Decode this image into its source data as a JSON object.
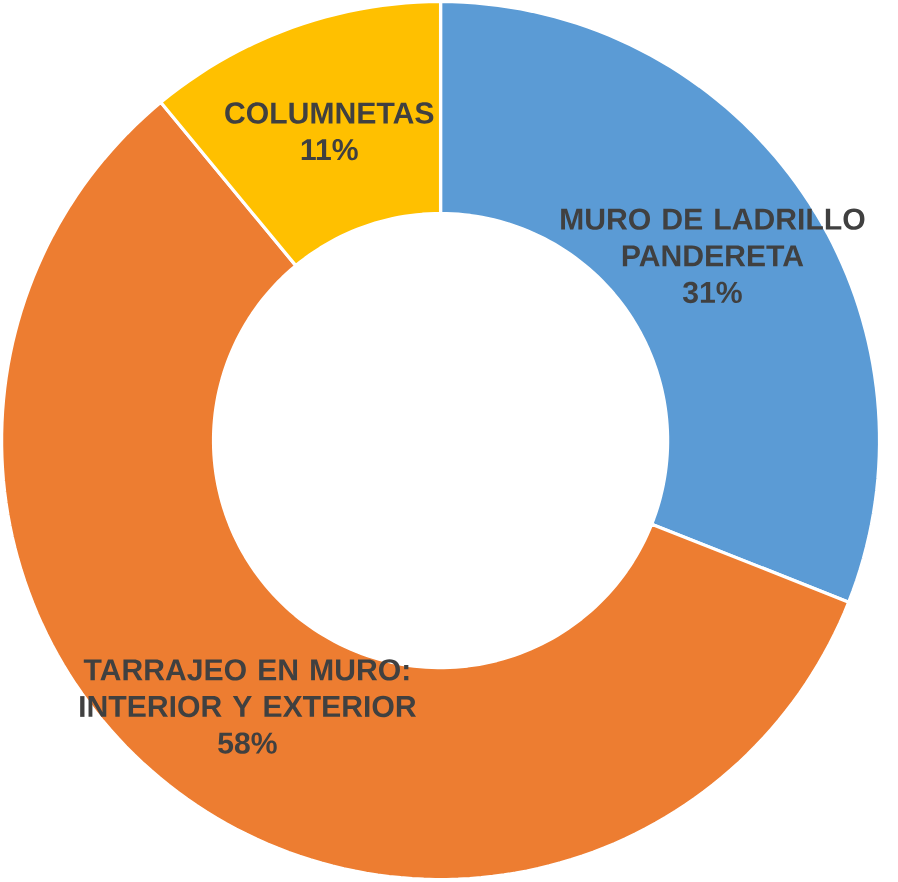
{
  "chart_data": {
    "type": "donut",
    "categories": [
      "MURO DE LADRILLO PANDERETA",
      "TARRAJEO EN MURO: INTERIOR Y EXTERIOR",
      "COLUMNETAS"
    ],
    "values": [
      31,
      58,
      11
    ],
    "colors": [
      "#5b9bd5",
      "#ed7d31",
      "#ffc000"
    ],
    "value_labels": [
      "31%",
      "58%",
      "11%"
    ]
  }
}
